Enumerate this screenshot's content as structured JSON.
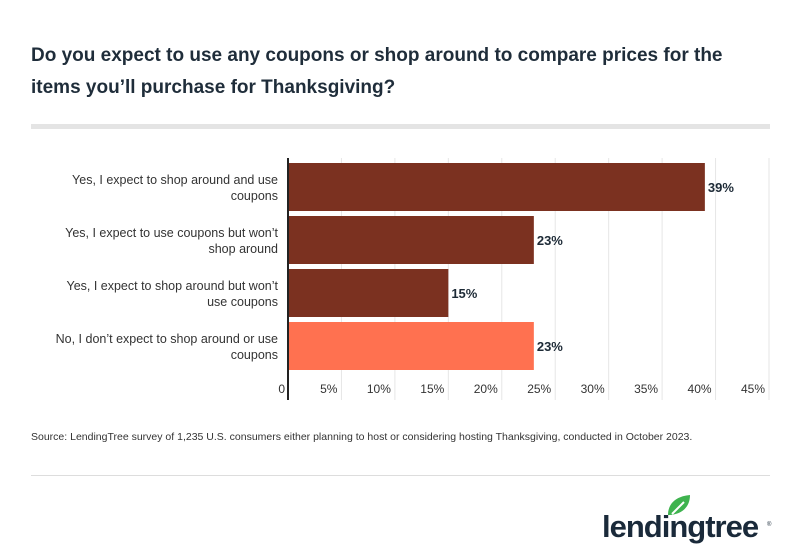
{
  "title": "Do you expect to use any coupons or shop around to compare prices for the items you’ll purchase for Thanksgiving?",
  "source": "Source: LendingTree survey of 1,235 U.S. consumers either planning to host or considering hosting Thanksgiving, conducted in October 2023.",
  "logo": "lendingtree",
  "chart_data": {
    "type": "bar",
    "orientation": "horizontal",
    "categories": [
      [
        "Yes, I expect to shop around and use",
        "coupons"
      ],
      [
        "Yes, I expect to use coupons but won’t",
        "shop around"
      ],
      [
        "Yes, I expect to shop around but won’t",
        "use coupons"
      ],
      [
        "No, I don’t expect to shop around or use",
        "coupons"
      ]
    ],
    "values": [
      39,
      23,
      15,
      23
    ],
    "data_labels": [
      "39%",
      "23%",
      "15%",
      "23%"
    ],
    "colors": [
      "#7b3120",
      "#7b3120",
      "#7b3120",
      "#ff7150"
    ],
    "xlim": [
      0,
      45
    ],
    "xticks": [
      "0",
      "5%",
      "10%",
      "15%",
      "20%",
      "25%",
      "30%",
      "35%",
      "40%",
      "45%"
    ],
    "grid": true
  }
}
